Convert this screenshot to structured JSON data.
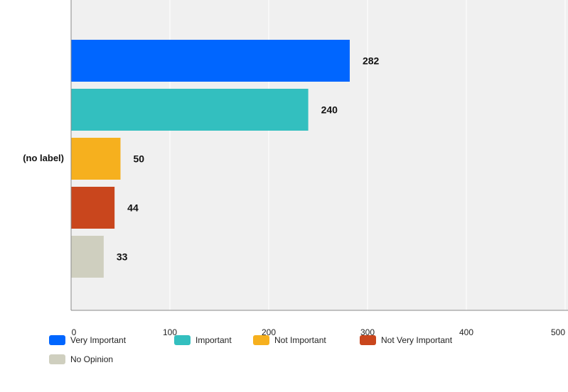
{
  "chart_data": {
    "type": "bar",
    "orientation": "horizontal",
    "categories": [
      "(no label)"
    ],
    "series": [
      {
        "name": "Very Important",
        "values": [
          282
        ],
        "color": "#0066ff"
      },
      {
        "name": "Important",
        "values": [
          240
        ],
        "color": "#33bfbf"
      },
      {
        "name": "Not Important",
        "values": [
          50
        ],
        "color": "#f6b01e"
      },
      {
        "name": "Not Very Important",
        "values": [
          44
        ],
        "color": "#c9461d"
      },
      {
        "name": "No Opinion",
        "values": [
          33
        ],
        "color": "#cfcfbf"
      }
    ],
    "data_labels": [
      "282",
      "240",
      "50",
      "44",
      "33"
    ],
    "xlim": [
      0,
      500
    ],
    "xticks": [
      "0",
      "100",
      "200",
      "300",
      "400",
      "500"
    ],
    "grid": true,
    "legend_position": "bottom",
    "plot_background": "#f0f0f0",
    "gridline_color": "#ffffff"
  }
}
